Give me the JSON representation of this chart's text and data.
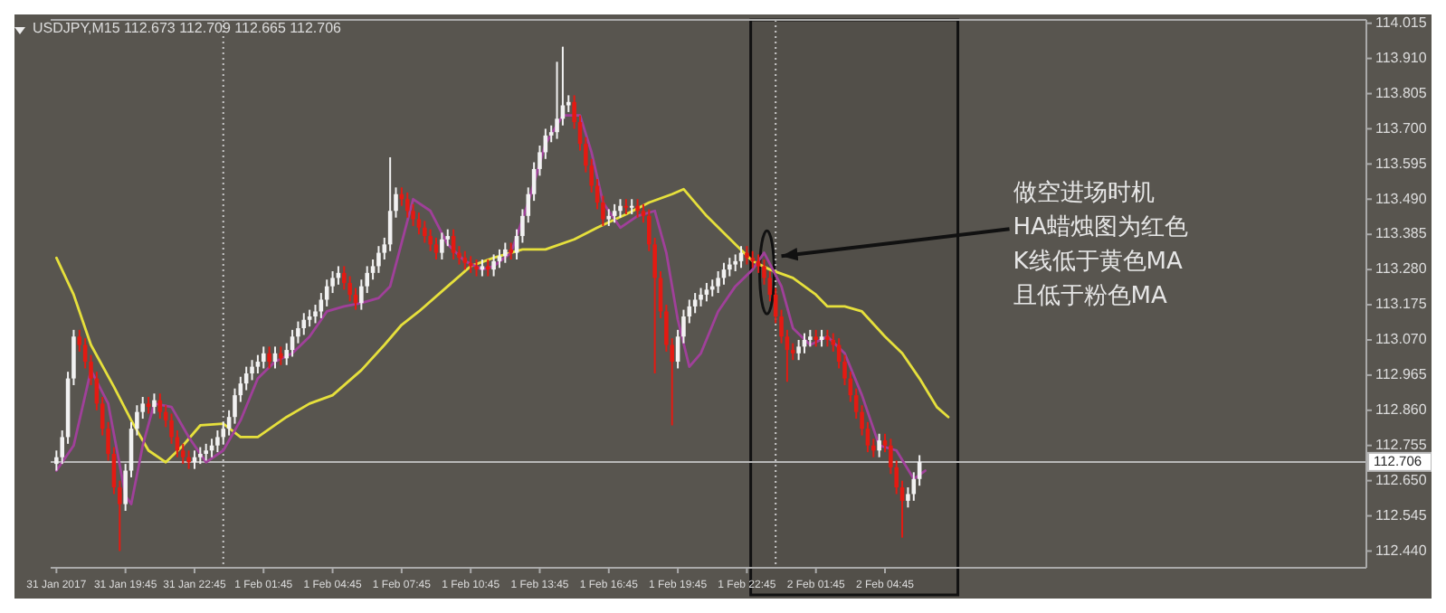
{
  "chart_data": {
    "type": "candlestick",
    "title": "USDJPY,M15  112.673 112.709 112.665 112.706",
    "x": [
      "2017-01-31T16:45",
      "2017-01-31T17:00",
      "2017-01-31T17:15",
      "2017-01-31T17:30",
      "2017-01-31T17:45",
      "2017-01-31T18:00",
      "2017-01-31T18:15",
      "2017-01-31T18:30",
      "2017-01-31T18:45",
      "2017-01-31T19:00",
      "2017-01-31T19:15",
      "2017-01-31T19:30",
      "2017-01-31T19:45",
      "2017-01-31T20:00",
      "2017-01-31T20:15",
      "2017-01-31T20:30",
      "2017-01-31T20:45",
      "2017-01-31T21:00",
      "2017-01-31T21:15",
      "2017-01-31T21:30",
      "2017-01-31T21:45",
      "2017-01-31T22:00",
      "2017-01-31T22:15",
      "2017-01-31T22:30",
      "2017-01-31T22:45",
      "2017-01-31T23:00",
      "2017-01-31T23:15",
      "2017-01-31T23:30",
      "2017-01-31T23:45",
      "2017-02-01T00:00",
      "2017-02-01T00:15",
      "2017-02-01T00:30",
      "2017-02-01T00:45",
      "2017-02-01T01:00",
      "2017-02-01T01:15",
      "2017-02-01T01:30",
      "2017-02-01T01:45",
      "2017-02-01T02:00",
      "2017-02-01T02:15",
      "2017-02-01T02:30",
      "2017-02-01T02:45",
      "2017-02-01T03:00",
      "2017-02-01T03:15",
      "2017-02-01T03:30",
      "2017-02-01T03:45",
      "2017-02-01T04:00",
      "2017-02-01T04:15",
      "2017-02-01T04:30",
      "2017-02-01T04:45",
      "2017-02-01T05:00",
      "2017-02-01T05:15",
      "2017-02-01T05:30",
      "2017-02-01T05:45",
      "2017-02-01T06:00",
      "2017-02-01T06:15",
      "2017-02-01T06:30",
      "2017-02-01T06:45",
      "2017-02-01T07:00",
      "2017-02-01T07:15",
      "2017-02-01T07:30",
      "2017-02-01T07:45",
      "2017-02-01T08:00",
      "2017-02-01T08:15",
      "2017-02-01T08:30",
      "2017-02-01T08:45",
      "2017-02-01T09:00",
      "2017-02-01T09:15",
      "2017-02-01T09:30",
      "2017-02-01T09:45",
      "2017-02-01T10:00",
      "2017-02-01T10:15",
      "2017-02-01T10:30",
      "2017-02-01T10:45",
      "2017-02-01T11:00",
      "2017-02-01T11:15",
      "2017-02-01T11:30",
      "2017-02-01T11:45",
      "2017-02-01T12:00",
      "2017-02-01T12:15",
      "2017-02-01T12:30",
      "2017-02-01T12:45",
      "2017-02-01T13:00",
      "2017-02-01T13:15",
      "2017-02-01T13:30",
      "2017-02-01T13:45",
      "2017-02-01T14:00",
      "2017-02-01T14:15",
      "2017-02-01T14:30",
      "2017-02-01T14:45",
      "2017-02-01T15:00",
      "2017-02-01T15:15",
      "2017-02-01T15:30",
      "2017-02-01T15:45",
      "2017-02-01T16:00",
      "2017-02-01T16:15",
      "2017-02-01T16:30",
      "2017-02-01T16:45",
      "2017-02-01T17:00",
      "2017-02-01T17:15",
      "2017-02-01T17:30",
      "2017-02-01T17:45",
      "2017-02-01T18:00",
      "2017-02-01T18:15",
      "2017-02-01T18:30",
      "2017-02-01T18:45",
      "2017-02-01T19:00",
      "2017-02-01T19:15",
      "2017-02-01T19:30",
      "2017-02-01T19:45",
      "2017-02-01T20:00",
      "2017-02-01T20:15",
      "2017-02-01T20:30",
      "2017-02-01T20:45",
      "2017-02-01T21:00",
      "2017-02-01T21:15",
      "2017-02-01T21:30",
      "2017-02-01T21:45",
      "2017-02-01T22:00",
      "2017-02-01T22:15",
      "2017-02-01T22:30",
      "2017-02-01T22:45",
      "2017-02-01T23:00",
      "2017-02-01T23:15",
      "2017-02-01T23:30",
      "2017-02-01T23:45",
      "2017-02-02T00:00",
      "2017-02-02T00:15",
      "2017-02-02T00:30",
      "2017-02-02T00:45",
      "2017-02-02T01:00",
      "2017-02-02T01:15",
      "2017-02-02T01:30",
      "2017-02-02T01:45",
      "2017-02-02T02:00",
      "2017-02-02T02:15",
      "2017-02-02T02:30",
      "2017-02-02T02:45",
      "2017-02-02T03:00",
      "2017-02-02T03:15",
      "2017-02-02T03:30",
      "2017-02-02T03:45",
      "2017-02-02T04:00",
      "2017-02-02T04:15",
      "2017-02-02T04:30",
      "2017-02-02T04:45",
      "2017-02-02T05:00",
      "2017-02-02T05:15",
      "2017-02-02T05:30",
      "2017-02-02T05:45",
      "2017-02-02T06:00",
      "2017-02-02T06:15"
    ],
    "ohlc": [
      [
        112.7,
        112.74,
        112.68,
        112.72
      ],
      [
        112.72,
        112.8,
        112.7,
        112.78
      ],
      [
        112.78,
        112.975,
        112.76,
        112.955
      ],
      [
        112.955,
        113.1,
        112.935,
        113.08
      ],
      [
        113.08,
        113.1,
        113.035,
        113.055
      ],
      [
        113.055,
        113.075,
        112.985,
        113.005
      ],
      [
        113.005,
        113.025,
        112.935,
        112.955
      ],
      [
        112.955,
        112.975,
        112.86,
        112.88
      ],
      [
        112.88,
        112.9,
        112.785,
        112.805
      ],
      [
        112.805,
        112.825,
        112.71,
        112.73
      ],
      [
        112.73,
        112.75,
        112.61,
        112.63
      ],
      [
        112.63,
        112.65,
        112.44,
        112.58
      ],
      [
        112.58,
        112.7,
        112.56,
        112.68
      ],
      [
        112.68,
        112.825,
        112.66,
        112.805
      ],
      [
        112.805,
        112.875,
        112.785,
        112.855
      ],
      [
        112.855,
        112.9,
        112.835,
        112.88
      ],
      [
        112.88,
        112.9,
        112.85,
        112.87
      ],
      [
        112.87,
        112.91,
        112.85,
        112.89
      ],
      [
        112.89,
        112.91,
        112.835,
        112.855
      ],
      [
        112.855,
        112.875,
        112.81,
        112.83
      ],
      [
        112.83,
        112.85,
        112.76,
        112.78
      ],
      [
        112.78,
        112.8,
        112.72,
        112.74
      ],
      [
        112.74,
        112.76,
        112.7,
        112.72
      ],
      [
        112.72,
        112.74,
        112.685,
        112.705
      ],
      [
        112.705,
        112.74,
        112.685,
        112.72
      ],
      [
        112.72,
        112.75,
        112.7,
        112.73
      ],
      [
        112.73,
        112.76,
        112.71,
        112.74
      ],
      [
        112.74,
        112.775,
        112.72,
        112.755
      ],
      [
        112.755,
        112.8,
        112.735,
        112.78
      ],
      [
        112.78,
        112.825,
        112.76,
        112.805
      ],
      [
        112.805,
        112.86,
        112.785,
        112.84
      ],
      [
        112.84,
        112.925,
        112.82,
        112.905
      ],
      [
        112.905,
        112.96,
        112.885,
        112.94
      ],
      [
        112.94,
        112.99,
        112.92,
        112.97
      ],
      [
        112.97,
        113.01,
        112.95,
        112.99
      ],
      [
        112.99,
        113.025,
        112.97,
        113.005
      ],
      [
        113.005,
        113.05,
        112.985,
        113.03
      ],
      [
        113.03,
        113.05,
        112.985,
        113.005
      ],
      [
        113.005,
        113.05,
        112.985,
        113.03
      ],
      [
        113.03,
        113.05,
        112.995,
        113.015
      ],
      [
        113.015,
        113.06,
        112.995,
        113.04
      ],
      [
        113.04,
        113.1,
        113.02,
        113.08
      ],
      [
        113.08,
        113.125,
        113.06,
        113.105
      ],
      [
        113.105,
        113.15,
        113.085,
        113.13
      ],
      [
        113.13,
        113.16,
        113.11,
        113.14
      ],
      [
        113.14,
        113.175,
        113.12,
        113.155
      ],
      [
        113.155,
        113.21,
        113.135,
        113.19
      ],
      [
        113.19,
        113.25,
        113.17,
        113.23
      ],
      [
        113.23,
        113.275,
        113.21,
        113.255
      ],
      [
        113.255,
        113.29,
        113.235,
        113.27
      ],
      [
        113.27,
        113.29,
        113.22,
        113.24
      ],
      [
        113.24,
        113.26,
        113.185,
        113.205
      ],
      [
        113.205,
        113.225,
        113.16,
        113.18
      ],
      [
        113.18,
        113.25,
        113.16,
        113.23
      ],
      [
        113.23,
        113.29,
        113.21,
        113.27
      ],
      [
        113.27,
        113.31,
        113.25,
        113.29
      ],
      [
        113.29,
        113.35,
        113.27,
        113.33
      ],
      [
        113.33,
        113.375,
        113.31,
        113.355
      ],
      [
        113.355,
        113.615,
        113.335,
        113.455
      ],
      [
        113.455,
        113.525,
        113.435,
        113.505
      ],
      [
        113.505,
        113.525,
        113.47,
        113.49
      ],
      [
        113.49,
        113.51,
        113.435,
        113.455
      ],
      [
        113.455,
        113.475,
        113.41,
        113.43
      ],
      [
        113.43,
        113.45,
        113.385,
        113.405
      ],
      [
        113.405,
        113.425,
        113.36,
        113.38
      ],
      [
        113.38,
        113.4,
        113.335,
        113.355
      ],
      [
        113.355,
        113.375,
        113.31,
        113.33
      ],
      [
        113.33,
        113.39,
        113.31,
        113.37
      ],
      [
        113.37,
        113.4,
        113.35,
        113.38
      ],
      [
        113.38,
        113.4,
        113.31,
        113.33
      ],
      [
        113.33,
        113.35,
        113.295,
        113.315
      ],
      [
        113.315,
        113.335,
        113.28,
        113.3
      ],
      [
        113.3,
        113.32,
        113.27,
        113.29
      ],
      [
        113.29,
        113.31,
        113.26,
        113.28
      ],
      [
        113.28,
        113.31,
        113.26,
        113.29
      ],
      [
        113.29,
        113.31,
        113.26,
        113.28
      ],
      [
        113.28,
        113.325,
        113.26,
        113.305
      ],
      [
        113.305,
        113.34,
        113.285,
        113.32
      ],
      [
        113.32,
        113.36,
        113.3,
        113.34
      ],
      [
        113.34,
        113.36,
        113.31,
        113.33
      ],
      [
        113.33,
        113.4,
        113.31,
        113.38
      ],
      [
        113.38,
        113.46,
        113.36,
        113.44
      ],
      [
        113.44,
        113.525,
        113.42,
        113.505
      ],
      [
        113.505,
        113.6,
        113.485,
        113.58
      ],
      [
        113.58,
        113.65,
        113.56,
        113.63
      ],
      [
        113.63,
        113.7,
        113.61,
        113.68
      ],
      [
        113.68,
        113.71,
        113.66,
        113.69
      ],
      [
        113.69,
        113.9,
        113.67,
        113.73
      ],
      [
        113.73,
        113.945,
        113.71,
        113.77
      ],
      [
        113.77,
        113.8,
        113.75,
        113.78
      ],
      [
        113.78,
        113.8,
        113.7,
        113.72
      ],
      [
        113.72,
        113.74,
        113.635,
        113.655
      ],
      [
        113.655,
        113.675,
        113.57,
        113.59
      ],
      [
        113.59,
        113.61,
        113.51,
        113.53
      ],
      [
        113.53,
        113.55,
        113.46,
        113.48
      ],
      [
        113.48,
        113.5,
        113.41,
        113.43
      ],
      [
        113.43,
        113.46,
        113.41,
        113.44
      ],
      [
        113.44,
        113.475,
        113.42,
        113.455
      ],
      [
        113.455,
        113.49,
        113.435,
        113.47
      ],
      [
        113.47,
        113.49,
        113.445,
        113.465
      ],
      [
        113.465,
        113.49,
        113.445,
        113.47
      ],
      [
        113.47,
        113.49,
        113.435,
        113.455
      ],
      [
        113.455,
        113.475,
        113.42,
        113.44
      ],
      [
        113.44,
        113.46,
        113.335,
        113.355
      ],
      [
        113.355,
        113.375,
        112.97,
        113.255
      ],
      [
        113.255,
        113.275,
        113.135,
        113.155
      ],
      [
        113.155,
        113.175,
        113.035,
        113.055
      ],
      [
        113.055,
        113.075,
        112.815,
        113.005
      ],
      [
        113.005,
        113.1,
        112.985,
        113.08
      ],
      [
        113.08,
        113.16,
        113.06,
        113.14
      ],
      [
        113.14,
        113.19,
        113.12,
        113.17
      ],
      [
        113.17,
        113.21,
        113.15,
        113.19
      ],
      [
        113.19,
        113.225,
        113.17,
        113.205
      ],
      [
        113.205,
        113.24,
        113.185,
        113.22
      ],
      [
        113.22,
        113.25,
        113.2,
        113.23
      ],
      [
        113.23,
        113.275,
        113.21,
        113.255
      ],
      [
        113.255,
        113.3,
        113.235,
        113.28
      ],
      [
        113.28,
        113.315,
        113.26,
        113.295
      ],
      [
        113.295,
        113.325,
        113.275,
        113.305
      ],
      [
        113.305,
        113.35,
        113.285,
        113.33
      ],
      [
        113.33,
        113.35,
        113.295,
        113.315
      ],
      [
        113.315,
        113.335,
        113.285,
        113.305
      ],
      [
        113.305,
        113.325,
        113.27,
        113.29
      ],
      [
        113.29,
        113.31,
        113.235,
        113.255
      ],
      [
        113.255,
        113.275,
        113.185,
        113.205
      ],
      [
        113.205,
        113.225,
        113.12,
        113.14
      ],
      [
        113.14,
        113.16,
        113.06,
        113.08
      ],
      [
        113.08,
        113.1,
        112.945,
        113.04
      ],
      [
        113.04,
        113.06,
        113.01,
        113.03
      ],
      [
        113.03,
        113.07,
        113.01,
        113.05
      ],
      [
        113.05,
        113.09,
        113.03,
        113.07
      ],
      [
        113.07,
        113.1,
        113.05,
        113.08
      ],
      [
        113.08,
        113.1,
        113.05,
        113.07
      ],
      [
        113.07,
        113.1,
        113.05,
        113.08
      ],
      [
        113.08,
        113.1,
        113.05,
        113.07
      ],
      [
        113.07,
        113.09,
        113.035,
        113.055
      ],
      [
        113.055,
        113.075,
        112.985,
        113.005
      ],
      [
        113.005,
        113.025,
        112.935,
        112.955
      ],
      [
        112.955,
        112.975,
        112.885,
        112.905
      ],
      [
        112.905,
        112.925,
        112.835,
        112.855
      ],
      [
        112.855,
        112.875,
        112.785,
        112.805
      ],
      [
        112.805,
        112.825,
        112.735,
        112.755
      ],
      [
        112.755,
        112.775,
        112.72,
        112.74
      ],
      [
        112.74,
        112.79,
        112.72,
        112.77
      ],
      [
        112.77,
        112.79,
        112.735,
        112.755
      ],
      [
        112.755,
        112.775,
        112.67,
        112.69
      ],
      [
        112.69,
        112.71,
        112.61,
        112.63
      ],
      [
        112.63,
        112.65,
        112.48,
        112.59
      ],
      [
        112.59,
        112.63,
        112.57,
        112.61
      ],
      [
        112.61,
        112.675,
        112.59,
        112.655
      ],
      [
        112.655,
        112.726,
        112.635,
        112.706
      ]
    ],
    "series": [
      {
        "type": "line",
        "color": "#e6e03c",
        "x": [
          "2017-01-31T16:45",
          "2017-01-31T17:30",
          "2017-01-31T18:15",
          "2017-01-31T19:15",
          "2017-01-31T20:00",
          "2017-01-31T20:45",
          "2017-01-31T21:30",
          "2017-01-31T22:15",
          "2017-01-31T23:00",
          "2017-02-01T00:00",
          "2017-02-01T00:45",
          "2017-02-01T01:30",
          "2017-02-01T02:45",
          "2017-02-01T03:45",
          "2017-02-01T04:45",
          "2017-02-01T06:00",
          "2017-02-01T07:00",
          "2017-02-01T07:45",
          "2017-02-01T08:30",
          "2017-02-01T09:45",
          "2017-02-01T10:45",
          "2017-02-01T11:45",
          "2017-02-01T13:00",
          "2017-02-01T14:00",
          "2017-02-01T15:15",
          "2017-02-01T16:15",
          "2017-02-01T17:30",
          "2017-02-01T18:30",
          "2017-02-01T19:30",
          "2017-02-01T20:00",
          "2017-02-01T21:00",
          "2017-02-01T22:15",
          "2017-02-01T23:00",
          "2017-02-01T23:45",
          "2017-02-02T00:45",
          "2017-02-02T01:45",
          "2017-02-02T02:15",
          "2017-02-02T03:00",
          "2017-02-02T03:45",
          "2017-02-02T04:45",
          "2017-02-02T05:30",
          "2017-02-02T06:15",
          "2017-02-02T07:00",
          "2017-02-02T07:30"
        ],
        "values": [
          113.315,
          113.205,
          113.055,
          112.93,
          112.83,
          112.74,
          112.705,
          112.755,
          112.815,
          112.82,
          112.78,
          112.78,
          112.84,
          112.88,
          112.905,
          112.98,
          113.055,
          113.115,
          113.155,
          113.23,
          113.29,
          113.315,
          113.34,
          113.34,
          113.37,
          113.405,
          113.445,
          113.48,
          113.505,
          113.52,
          113.44,
          113.355,
          113.305,
          113.28,
          113.255,
          113.205,
          113.17,
          113.17,
          113.155,
          113.08,
          113.03,
          112.955,
          112.87,
          112.84
        ]
      },
      {
        "type": "line",
        "color": "#a0409a",
        "x": [
          "2017-01-31T16:45",
          "2017-01-31T17:30",
          "2017-01-31T18:15",
          "2017-01-31T19:00",
          "2017-01-31T19:45",
          "2017-01-31T20:00",
          "2017-01-31T20:30",
          "2017-01-31T21:00",
          "2017-01-31T21:45",
          "2017-01-31T22:30",
          "2017-01-31T23:15",
          "2017-02-01T00:00",
          "2017-02-01T00:45",
          "2017-02-01T01:30",
          "2017-02-01T02:15",
          "2017-02-01T03:00",
          "2017-02-01T03:45",
          "2017-02-01T04:30",
          "2017-02-01T05:15",
          "2017-02-01T06:00",
          "2017-02-01T06:45",
          "2017-02-01T07:15",
          "2017-02-01T08:15",
          "2017-02-01T09:00",
          "2017-02-01T09:45",
          "2017-02-01T10:30",
          "2017-02-01T11:15",
          "2017-02-01T11:45",
          "2017-02-01T12:30",
          "2017-02-01T13:15",
          "2017-02-01T14:00",
          "2017-02-01T14:45",
          "2017-02-01T15:30",
          "2017-02-01T16:00",
          "2017-02-01T16:30",
          "2017-02-01T17:15",
          "2017-02-01T18:00",
          "2017-02-01T18:45",
          "2017-02-01T19:15",
          "2017-02-01T19:45",
          "2017-02-01T20:15",
          "2017-02-01T20:45",
          "2017-02-01T21:30",
          "2017-02-01T22:15",
          "2017-02-01T23:00",
          "2017-02-01T23:30",
          "2017-02-02T00:15",
          "2017-02-02T00:45",
          "2017-02-02T01:30",
          "2017-02-02T02:15",
          "2017-02-02T03:00",
          "2017-02-02T03:45",
          "2017-02-02T04:30",
          "2017-02-02T05:15",
          "2017-02-02T06:00",
          "2017-02-02T06:30"
        ],
        "values": [
          112.68,
          112.755,
          112.98,
          112.88,
          112.605,
          112.58,
          112.755,
          112.88,
          112.87,
          112.78,
          112.705,
          112.74,
          112.83,
          112.955,
          113.005,
          113.03,
          113.08,
          113.155,
          113.17,
          113.18,
          113.195,
          113.23,
          113.49,
          113.455,
          113.355,
          113.305,
          113.28,
          113.29,
          113.33,
          113.48,
          113.655,
          113.74,
          113.74,
          113.63,
          113.48,
          113.405,
          113.44,
          113.455,
          113.33,
          113.13,
          112.99,
          113.03,
          113.155,
          113.23,
          113.28,
          113.33,
          113.23,
          113.105,
          113.055,
          113.08,
          113.03,
          112.905,
          112.755,
          112.74,
          112.655,
          112.68
        ]
      }
    ],
    "xlim": [
      "2017-01-31T16:30",
      "2017-02-03T01:40"
    ],
    "xticks": [
      {
        "value": "2017-01-31T16:45",
        "label": "31 Jan 2017"
      },
      {
        "value": "2017-01-31T19:45",
        "label": "31 Jan 19:45"
      },
      {
        "value": "2017-01-31T22:45",
        "label": "31 Jan 22:45"
      },
      {
        "value": "2017-02-01T01:45",
        "label": "1 Feb 01:45"
      },
      {
        "value": "2017-02-01T04:45",
        "label": "1 Feb 04:45"
      },
      {
        "value": "2017-02-01T07:45",
        "label": "1 Feb 07:45"
      },
      {
        "value": "2017-02-01T10:45",
        "label": "1 Feb 10:45"
      },
      {
        "value": "2017-02-01T13:45",
        "label": "1 Feb 13:45"
      },
      {
        "value": "2017-02-01T16:45",
        "label": "1 Feb 16:45"
      },
      {
        "value": "2017-02-01T19:45",
        "label": "1 Feb 19:45"
      },
      {
        "value": "2017-02-01T22:45",
        "label": "1 Feb 22:45"
      },
      {
        "value": "2017-02-02T01:45",
        "label": "2 Feb 01:45"
      },
      {
        "value": "2017-02-02T04:45",
        "label": "2 Feb 04:45"
      }
    ],
    "ylim": [
      112.39,
      114.025
    ],
    "yticks": [
      114.015,
      {
        "value": 113.91,
        "label": "113.910"
      },
      113.805,
      {
        "value": 113.7,
        "label": "113.700"
      },
      113.595,
      {
        "value": 113.49,
        "label": "113.490"
      },
      113.385,
      {
        "value": 113.28,
        "label": "113.280"
      },
      113.175,
      {
        "value": 113.07,
        "label": "113.070"
      },
      112.965,
      {
        "value": 112.86,
        "label": "112.860"
      },
      112.755,
      {
        "value": 112.65,
        "label": "112.650"
      },
      112.545,
      {
        "value": 112.44,
        "label": "112.440"
      }
    ],
    "ref_lines": [
      {
        "axis": "x",
        "value": "2017-02-01T00:00",
        "color": "#c8c8c8",
        "line_style": "dotted"
      },
      {
        "axis": "x",
        "value": "2017-02-02T00:00",
        "color": "#c8c8c8",
        "line_style": "dotted"
      },
      {
        "axis": "y",
        "value": 112.706,
        "label": "112.706",
        "color": "#b8b8b8",
        "line_style": "solid"
      }
    ],
    "bands": [
      {
        "axis": "x",
        "from": "2017-02-01T22:55",
        "to": "2017-02-02T07:55",
        "color": "#111111"
      }
    ],
    "annotations": [
      {
        "text": "做空进场时机\nHA蜡烛图为红色\nK线低于黄色MA\n且低于粉色MA",
        "x": "2017-02-02T00:15",
        "y": 113.32
      }
    ]
  }
}
